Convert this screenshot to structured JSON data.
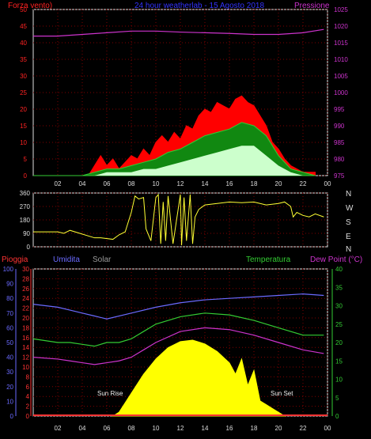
{
  "top_header": {
    "left_label": "Forza vento)",
    "center_label": "24 hour weatherlab - 15 Agosto 2018",
    "right_label": "Pressione"
  },
  "middle_header": {
    "compass_labels": [
      "N",
      "W",
      "S",
      "E",
      "N"
    ]
  },
  "bottom_header": {
    "pioggia": "Pioggia",
    "umidita": "Umidita",
    "solar": "Solar",
    "temperatura": "Temperatura",
    "dewpoint": "Dew Point (°C)"
  },
  "annotations": {
    "sunrise": "Sun Rise",
    "sunset": "Sun Set"
  },
  "colors": {
    "wind_gust": "#ff0000",
    "wind_avg": "#33cc33",
    "wind_min": "#ccffcc",
    "pressure": "#cc33cc",
    "direction": "#ffff33",
    "humidity": "#6a6aff",
    "temperature": "#33cc33",
    "dewpoint": "#cc33cc",
    "solar": "#ffff00",
    "rain": "#ff3333",
    "grid": "#800000",
    "axis": "#e0e0e0"
  },
  "chart_data": [
    {
      "type": "line",
      "name": "wind-pressure",
      "x_ticks": [
        "02",
        "04",
        "06",
        "08",
        "10",
        "12",
        "14",
        "16",
        "18",
        "20",
        "22",
        "00"
      ],
      "yleft_ticks": [
        0,
        5,
        10,
        15,
        20,
        25,
        30,
        35,
        40,
        45,
        50
      ],
      "yright_ticks": [
        975,
        980,
        985,
        990,
        995,
        1000,
        1005,
        1010,
        1015,
        1020,
        1025
      ],
      "ylim_left": [
        0,
        50
      ],
      "ylim_right": [
        975,
        1025
      ],
      "xlim": [
        0,
        24
      ],
      "series": [
        {
          "x": [
            0,
            2,
            3,
            4,
            4.5,
            5,
            5.5,
            6,
            6.5,
            7,
            7.5,
            8,
            8.5,
            9,
            9.5,
            10,
            10.5,
            11,
            11.5,
            12,
            12.5,
            13,
            13.5,
            14,
            14.5,
            15,
            15.5,
            16,
            16.5,
            17,
            17.5,
            18,
            18.5,
            19,
            19.5,
            20,
            20.5,
            21,
            21.5,
            22,
            22.5,
            23
          ],
          "values": [
            0,
            0,
            0,
            0,
            0,
            3,
            6,
            3,
            5,
            2,
            4,
            6,
            5,
            8,
            6,
            10,
            12,
            10,
            13,
            11,
            15,
            14,
            18,
            20,
            19,
            22,
            21,
            20,
            23,
            24,
            22,
            21,
            18,
            15,
            10,
            8,
            5,
            3,
            2,
            1,
            1,
            1
          ]
        },
        {
          "x": [
            0,
            4,
            5,
            6,
            7,
            8,
            9,
            10,
            11,
            12,
            13,
            14,
            15,
            16,
            17,
            18,
            19,
            20,
            21,
            22,
            23
          ],
          "values": [
            0,
            0,
            1,
            2,
            2,
            3,
            4,
            5,
            7,
            8,
            10,
            12,
            13,
            14,
            16,
            15,
            12,
            6,
            2,
            1,
            0
          ]
        },
        {
          "x": [
            0,
            4,
            5,
            6,
            7,
            8,
            9,
            10,
            11,
            12,
            13,
            14,
            15,
            16,
            17,
            18,
            19,
            20,
            21,
            22,
            23
          ],
          "values": [
            0,
            0,
            0,
            1,
            1,
            1,
            2,
            2,
            3,
            4,
            5,
            6,
            7,
            8,
            9,
            9,
            6,
            3,
            1,
            0,
            0
          ]
        },
        {
          "x": [
            0,
            2,
            4,
            6,
            8,
            10,
            12,
            14,
            16,
            18,
            20,
            22,
            23.7
          ],
          "values": [
            1017,
            1017,
            1017.5,
            1018,
            1018.5,
            1018.5,
            1018.2,
            1018,
            1017.8,
            1017.5,
            1017.5,
            1018,
            1019
          ]
        }
      ]
    },
    {
      "type": "line",
      "name": "wind-direction",
      "ylim": [
        0,
        360
      ],
      "y_ticks": [
        0,
        90,
        180,
        270,
        360
      ],
      "series": [
        {
          "x": [
            0,
            2,
            2.5,
            3,
            5,
            5.5,
            6.5,
            7,
            7.5,
            8,
            8.3,
            8.6,
            9,
            9.2,
            9.6,
            10,
            10.2,
            10.4,
            10.6,
            10.8,
            11,
            11.4,
            12,
            12.1,
            12.3,
            12.5,
            12.8,
            13,
            13.2,
            13.5,
            14,
            15,
            16,
            17,
            18,
            19,
            20,
            20.5,
            21,
            21.2,
            21.5,
            22,
            22.5,
            23,
            23.7
          ],
          "values": [
            100,
            100,
            90,
            110,
            60,
            60,
            50,
            80,
            100,
            230,
            340,
            320,
            330,
            120,
            40,
            330,
            350,
            20,
            300,
            40,
            340,
            20,
            350,
            10,
            330,
            40,
            350,
            20,
            200,
            250,
            280,
            290,
            300,
            295,
            300,
            280,
            290,
            300,
            270,
            200,
            230,
            210,
            200,
            220,
            200
          ]
        }
      ]
    },
    {
      "type": "line",
      "name": "weather-conditions",
      "yaxes": {
        "pioggia": [
          0,
          2,
          4,
          6,
          8,
          10,
          12,
          14,
          16,
          18,
          20,
          22,
          24,
          26,
          28,
          30
        ],
        "umidita": [
          0,
          10,
          20,
          30,
          40,
          50,
          60,
          70,
          80,
          90,
          100
        ],
        "temperatura": [
          0,
          5,
          10,
          15,
          20,
          25,
          30,
          35,
          40
        ]
      },
      "solar_max": 1.0,
      "series": [
        {
          "x": [
            0,
            2,
            3,
            4,
            5,
            6,
            8,
            10,
            12,
            14,
            16,
            18,
            20,
            22,
            23.7
          ],
          "values": [
            76,
            74,
            72,
            70,
            68,
            66,
            70,
            74,
            77,
            79,
            80,
            81,
            82,
            83,
            82
          ]
        },
        {
          "x": [
            0,
            2,
            3,
            4,
            5,
            6,
            7,
            8,
            9,
            10,
            12,
            14,
            16,
            18,
            20,
            22,
            23.7
          ],
          "values": [
            21,
            20,
            20,
            19.5,
            19,
            20,
            20,
            21,
            23,
            25,
            27,
            28,
            27.5,
            26,
            24,
            22,
            22
          ]
        },
        {
          "x": [
            0,
            2,
            3,
            4,
            5,
            6,
            7,
            8,
            9,
            10,
            12,
            14,
            16,
            18,
            20,
            22,
            23.7
          ],
          "values": [
            16,
            15.5,
            15,
            14.5,
            14,
            14.5,
            15,
            16,
            18,
            20,
            23,
            24,
            23.5,
            22,
            20,
            18,
            17
          ]
        },
        {
          "x": [
            6.5,
            7,
            8,
            9,
            10,
            11,
            12,
            13,
            14,
            15,
            16,
            16.5,
            17,
            17.5,
            18,
            18.5,
            19,
            19.5,
            20,
            20.5
          ],
          "values": [
            0,
            0.05,
            0.3,
            0.55,
            0.75,
            0.9,
            0.98,
            1.0,
            0.95,
            0.85,
            0.7,
            0.55,
            0.75,
            0.4,
            0.6,
            0.2,
            0.15,
            0.1,
            0.05,
            0
          ]
        },
        {
          "x": [
            0,
            24
          ],
          "values": [
            0,
            0
          ]
        }
      ]
    }
  ]
}
